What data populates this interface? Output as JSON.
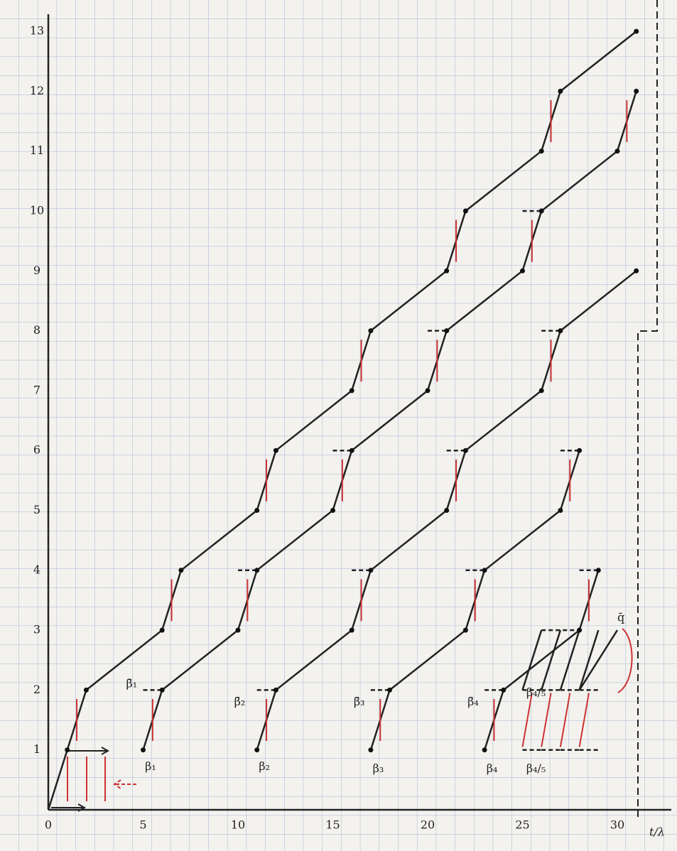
{
  "x_axis": {
    "ticks": [
      "0",
      "5",
      "10",
      "15",
      "20",
      "25",
      "30"
    ],
    "label": "t/λ"
  },
  "y_axis": {
    "ticks": [
      "1",
      "2",
      "3",
      "4",
      "5",
      "6",
      "7",
      "8",
      "9",
      "10",
      "11",
      "12",
      "13"
    ]
  },
  "labels": [
    "β̄₁",
    "β₁",
    "β̄₂",
    "β₂",
    "β̄₃",
    "β₃",
    "β̄₄",
    "β₄",
    "β₄/₅",
    "β₄/₅",
    "q̄"
  ]
}
